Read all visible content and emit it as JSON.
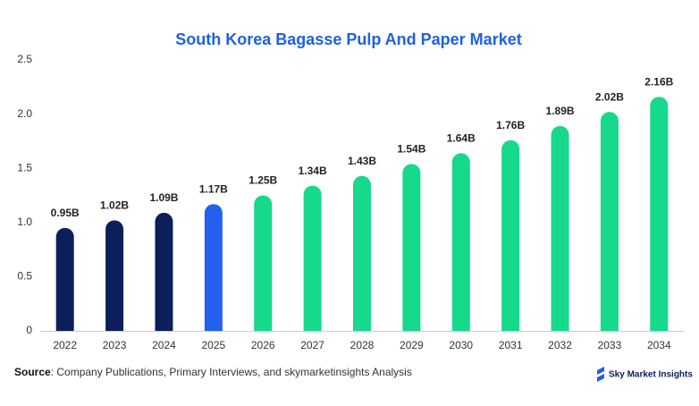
{
  "chart_data": {
    "type": "bar",
    "title": "South Korea Bagasse Pulp And Paper Market",
    "categories": [
      "2022",
      "2023",
      "2024",
      "2025",
      "2026",
      "2027",
      "2028",
      "2029",
      "2030",
      "2031",
      "2032",
      "2033",
      "2034"
    ],
    "values": [
      0.95,
      1.02,
      1.09,
      1.17,
      1.25,
      1.34,
      1.43,
      1.54,
      1.64,
      1.76,
      1.89,
      2.02,
      2.16
    ],
    "value_labels": [
      "0.95B",
      "1.02B",
      "1.09B",
      "1.17B",
      "1.25B",
      "1.34B",
      "1.43B",
      "1.54B",
      "1.64B",
      "1.76B",
      "1.89B",
      "2.02B",
      "2.16B"
    ],
    "colors": [
      "#0c1f5b",
      "#0c1f5b",
      "#0c1f5b",
      "#2360ee",
      "#16d98c",
      "#16d98c",
      "#16d98c",
      "#16d98c",
      "#16d98c",
      "#16d98c",
      "#16d98c",
      "#16d98c",
      "#16d98c"
    ],
    "ylim": [
      0,
      2.5
    ],
    "yticks": [
      0,
      0.5,
      {
        "value": 1,
        "label": "1.0"
      },
      1.5,
      {
        "value": 2,
        "label": "2.0"
      },
      2.5
    ],
    "grid": false,
    "source_label": "Source",
    "source_text": ": Company Publications, Primary Interviews, and skymarketinsights Analysis",
    "logo_text": "Sky Market Insights"
  }
}
